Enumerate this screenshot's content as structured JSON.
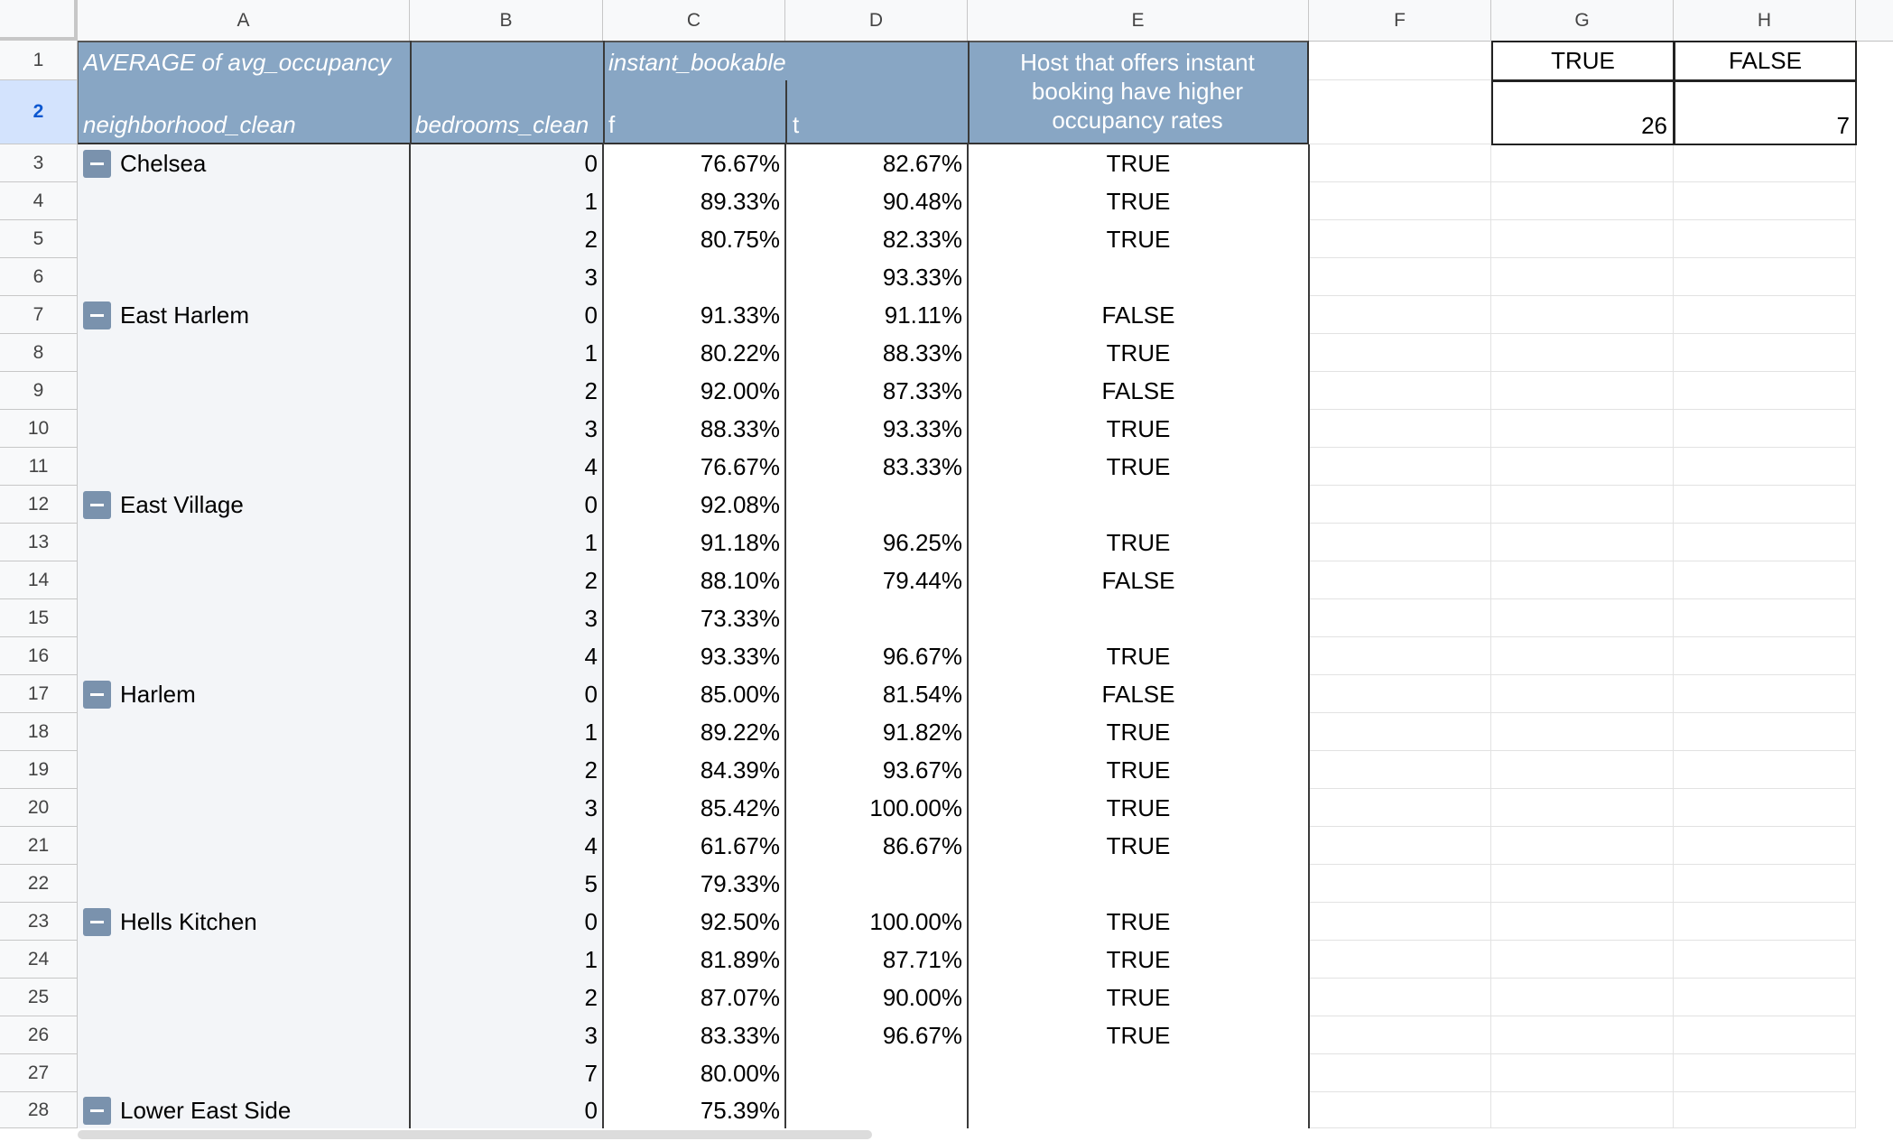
{
  "column_headers": [
    "A",
    "B",
    "C",
    "D",
    "E",
    "F",
    "G",
    "H"
  ],
  "row_numbers": [
    "1",
    "2",
    "3",
    "4",
    "5",
    "6",
    "7",
    "8",
    "9",
    "10",
    "11",
    "12",
    "13",
    "14",
    "15",
    "16",
    "17",
    "18",
    "19",
    "20",
    "21",
    "22",
    "23",
    "24",
    "25",
    "26",
    "27",
    "28"
  ],
  "selected_row": "2",
  "pivot": {
    "title": "AVERAGE of avg_occupancy",
    "col_field": "instant_bookable",
    "row_field_1": "neighborhood_clean",
    "row_field_2": "bedrooms_clean",
    "col_f": "f",
    "col_t": "t",
    "e_header": "Host that offers instant booking have higher occupancy rates"
  },
  "summary": {
    "true_label": "TRUE",
    "false_label": "FALSE",
    "true_count": "26",
    "false_count": "7"
  },
  "rows": [
    {
      "n": "Chelsea",
      "b": "0",
      "f": "76.67%",
      "t": "82.67%",
      "e": "TRUE"
    },
    {
      "n": "",
      "b": "1",
      "f": "89.33%",
      "t": "90.48%",
      "e": "TRUE"
    },
    {
      "n": "",
      "b": "2",
      "f": "80.75%",
      "t": "82.33%",
      "e": "TRUE"
    },
    {
      "n": "",
      "b": "3",
      "f": "",
      "t": "93.33%",
      "e": ""
    },
    {
      "n": "East Harlem",
      "b": "0",
      "f": "91.33%",
      "t": "91.11%",
      "e": "FALSE"
    },
    {
      "n": "",
      "b": "1",
      "f": "80.22%",
      "t": "88.33%",
      "e": "TRUE"
    },
    {
      "n": "",
      "b": "2",
      "f": "92.00%",
      "t": "87.33%",
      "e": "FALSE"
    },
    {
      "n": "",
      "b": "3",
      "f": "88.33%",
      "t": "93.33%",
      "e": "TRUE"
    },
    {
      "n": "",
      "b": "4",
      "f": "76.67%",
      "t": "83.33%",
      "e": "TRUE"
    },
    {
      "n": "East Village",
      "b": "0",
      "f": "92.08%",
      "t": "",
      "e": ""
    },
    {
      "n": "",
      "b": "1",
      "f": "91.18%",
      "t": "96.25%",
      "e": "TRUE"
    },
    {
      "n": "",
      "b": "2",
      "f": "88.10%",
      "t": "79.44%",
      "e": "FALSE"
    },
    {
      "n": "",
      "b": "3",
      "f": "73.33%",
      "t": "",
      "e": ""
    },
    {
      "n": "",
      "b": "4",
      "f": "93.33%",
      "t": "96.67%",
      "e": "TRUE"
    },
    {
      "n": "Harlem",
      "b": "0",
      "f": "85.00%",
      "t": "81.54%",
      "e": "FALSE"
    },
    {
      "n": "",
      "b": "1",
      "f": "89.22%",
      "t": "91.82%",
      "e": "TRUE"
    },
    {
      "n": "",
      "b": "2",
      "f": "84.39%",
      "t": "93.67%",
      "e": "TRUE"
    },
    {
      "n": "",
      "b": "3",
      "f": "85.42%",
      "t": "100.00%",
      "e": "TRUE"
    },
    {
      "n": "",
      "b": "4",
      "f": "61.67%",
      "t": "86.67%",
      "e": "TRUE"
    },
    {
      "n": "",
      "b": "5",
      "f": "79.33%",
      "t": "",
      "e": ""
    },
    {
      "n": "Hells Kitchen",
      "b": "0",
      "f": "92.50%",
      "t": "100.00%",
      "e": "TRUE"
    },
    {
      "n": "",
      "b": "1",
      "f": "81.89%",
      "t": "87.71%",
      "e": "TRUE"
    },
    {
      "n": "",
      "b": "2",
      "f": "87.07%",
      "t": "90.00%",
      "e": "TRUE"
    },
    {
      "n": "",
      "b": "3",
      "f": "83.33%",
      "t": "96.67%",
      "e": "TRUE"
    },
    {
      "n": "",
      "b": "7",
      "f": "80.00%",
      "t": "",
      "e": ""
    },
    {
      "n": "Lower East Side",
      "b": "0",
      "f": "75.39%",
      "t": "",
      "e": ""
    }
  ]
}
